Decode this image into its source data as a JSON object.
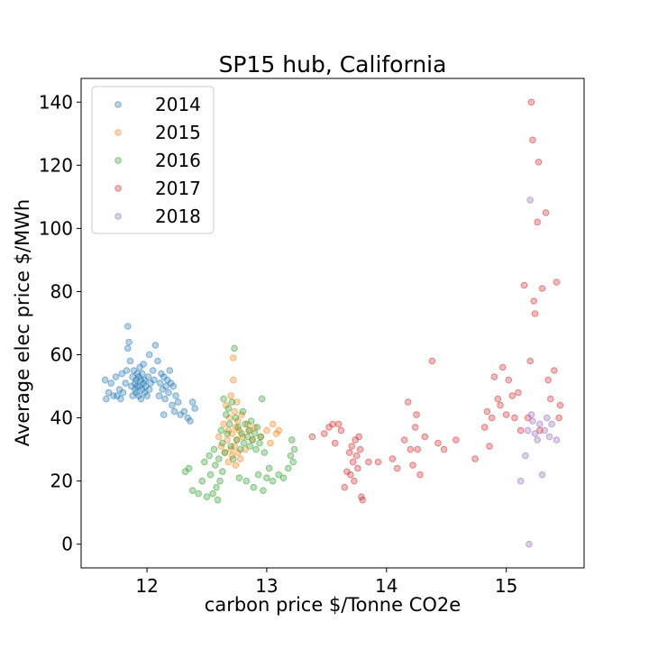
{
  "chart_data": {
    "type": "scatter",
    "title": "SP15 hub, California",
    "xlabel": "carbon price $/Tonne CO2e",
    "ylabel": "Average elec price $/MWh",
    "xlim": [
      11.45,
      15.65
    ],
    "ylim": [
      -7.5,
      147.5
    ],
    "xticks": [
      12,
      13,
      14,
      15
    ],
    "yticks": [
      0,
      20,
      40,
      60,
      80,
      100,
      120,
      140
    ],
    "grid": false,
    "legend_position": "upper-left",
    "series": [
      {
        "name": "2014",
        "color": "#1f77b4",
        "points": [
          [
            11.65,
            52
          ],
          [
            11.66,
            46
          ],
          [
            11.68,
            48
          ],
          [
            11.7,
            51
          ],
          [
            11.72,
            47
          ],
          [
            11.74,
            53
          ],
          [
            11.75,
            47
          ],
          [
            11.77,
            49
          ],
          [
            11.78,
            46
          ],
          [
            11.79,
            54
          ],
          [
            11.8,
            48
          ],
          [
            11.82,
            51
          ],
          [
            11.83,
            55
          ],
          [
            11.84,
            62
          ],
          [
            11.84,
            69
          ],
          [
            11.85,
            64
          ],
          [
            11.86,
            58
          ],
          [
            11.87,
            50
          ],
          [
            11.88,
            47
          ],
          [
            11.88,
            53
          ],
          [
            11.89,
            55
          ],
          [
            11.9,
            49
          ],
          [
            11.9,
            51
          ],
          [
            11.91,
            52
          ],
          [
            11.91,
            48
          ],
          [
            11.92,
            50
          ],
          [
            11.92,
            54
          ],
          [
            11.93,
            53
          ],
          [
            11.93,
            47
          ],
          [
            11.94,
            56
          ],
          [
            11.94,
            50
          ],
          [
            11.95,
            52
          ],
          [
            11.95,
            46
          ],
          [
            11.96,
            49
          ],
          [
            11.96,
            54
          ],
          [
            11.97,
            51
          ],
          [
            11.97,
            57
          ],
          [
            11.98,
            48
          ],
          [
            11.98,
            52
          ],
          [
            11.99,
            50
          ],
          [
            12,
            47
          ],
          [
            12.01,
            53
          ],
          [
            12.02,
            60
          ],
          [
            12.02,
            49
          ],
          [
            12.03,
            51
          ],
          [
            12.05,
            55
          ],
          [
            12.06,
            52
          ],
          [
            12.07,
            63
          ],
          [
            12.09,
            58
          ],
          [
            12.1,
            47
          ],
          [
            12.11,
            51
          ],
          [
            12.12,
            54
          ],
          [
            12.13,
            49
          ],
          [
            12.14,
            41
          ],
          [
            12.14,
            53
          ],
          [
            12.15,
            46
          ],
          [
            12.16,
            50
          ],
          [
            12.17,
            52
          ],
          [
            12.18,
            48
          ],
          [
            12.19,
            55
          ],
          [
            12.2,
            51
          ],
          [
            12.21,
            44
          ],
          [
            12.22,
            50
          ],
          [
            12.23,
            42
          ],
          [
            12.24,
            47
          ],
          [
            12.26,
            45
          ],
          [
            12.28,
            41
          ],
          [
            12.31,
            42
          ],
          [
            12.34,
            40
          ],
          [
            12.36,
            39
          ],
          [
            12.38,
            45
          ],
          [
            12.4,
            43
          ]
        ]
      },
      {
        "name": "2015",
        "color": "#ff7f0e",
        "points": [
          [
            12.6,
            34
          ],
          [
            12.62,
            31
          ],
          [
            12.64,
            38
          ],
          [
            12.65,
            29
          ],
          [
            12.66,
            44
          ],
          [
            12.67,
            33
          ],
          [
            12.68,
            36
          ],
          [
            12.68,
            26
          ],
          [
            12.69,
            40
          ],
          [
            12.7,
            30
          ],
          [
            12.7,
            47
          ],
          [
            12.71,
            35
          ],
          [
            12.71,
            28
          ],
          [
            12.72,
            52
          ],
          [
            12.72,
            59
          ],
          [
            12.73,
            42
          ],
          [
            12.73,
            31
          ],
          [
            12.74,
            37
          ],
          [
            12.74,
            25
          ],
          [
            12.75,
            33
          ],
          [
            12.75,
            45
          ],
          [
            12.76,
            29
          ],
          [
            12.76,
            39
          ],
          [
            12.77,
            36
          ],
          [
            12.78,
            27
          ],
          [
            12.79,
            41
          ],
          [
            12.8,
            34
          ],
          [
            12.82,
            30
          ],
          [
            12.84,
            38
          ],
          [
            12.86,
            36
          ],
          [
            12.88,
            33
          ],
          [
            12.9,
            37
          ],
          [
            12.95,
            34
          ],
          [
            13,
            36
          ],
          [
            13.03,
            32
          ],
          [
            13.05,
            38
          ],
          [
            13.08,
            35
          ],
          [
            13.1,
            36
          ]
        ]
      },
      {
        "name": "2016",
        "color": "#2ca02c",
        "points": [
          [
            12.32,
            23
          ],
          [
            12.35,
            24
          ],
          [
            12.38,
            17
          ],
          [
            12.43,
            16
          ],
          [
            12.46,
            20
          ],
          [
            12.48,
            26
          ],
          [
            12.5,
            15
          ],
          [
            12.52,
            28
          ],
          [
            12.53,
            22
          ],
          [
            12.55,
            16
          ],
          [
            12.56,
            30
          ],
          [
            12.57,
            25
          ],
          [
            12.58,
            18
          ],
          [
            12.59,
            14
          ],
          [
            12.6,
            27
          ],
          [
            12.61,
            20
          ],
          [
            12.62,
            36
          ],
          [
            12.63,
            23
          ],
          [
            12.63,
            32
          ],
          [
            12.64,
            46
          ],
          [
            12.65,
            29
          ],
          [
            12.66,
            41
          ],
          [
            12.67,
            35
          ],
          [
            12.68,
            43
          ],
          [
            12.69,
            38
          ],
          [
            12.7,
            31
          ],
          [
            12.71,
            45
          ],
          [
            12.72,
            27
          ],
          [
            12.73,
            62
          ],
          [
            12.74,
            40
          ],
          [
            12.75,
            33
          ],
          [
            12.76,
            37
          ],
          [
            12.77,
            21
          ],
          [
            12.78,
            30
          ],
          [
            12.79,
            35
          ],
          [
            12.8,
            42
          ],
          [
            12.81,
            32
          ],
          [
            12.82,
            38
          ],
          [
            12.83,
            20
          ],
          [
            12.84,
            34
          ],
          [
            12.85,
            36
          ],
          [
            12.86,
            31
          ],
          [
            12.87,
            39
          ],
          [
            12.88,
            33
          ],
          [
            12.89,
            18
          ],
          [
            12.9,
            35
          ],
          [
            12.91,
            30
          ],
          [
            12.92,
            37
          ],
          [
            12.93,
            22
          ],
          [
            12.94,
            32
          ],
          [
            12.95,
            34
          ],
          [
            12.96,
            46
          ],
          [
            12.97,
            17
          ],
          [
            12.98,
            29
          ],
          [
            13,
            21
          ],
          [
            13.02,
            24
          ],
          [
            13.05,
            20
          ],
          [
            13.1,
            22
          ],
          [
            13.14,
            21
          ],
          [
            13.18,
            24
          ],
          [
            13.2,
            28
          ],
          [
            13.21,
            33
          ],
          [
            13.22,
            26
          ],
          [
            13.23,
            30
          ]
        ]
      },
      {
        "name": "2017",
        "color": "#d62728",
        "points": [
          [
            13.38,
            34
          ],
          [
            13.48,
            35
          ],
          [
            13.52,
            37
          ],
          [
            13.55,
            38
          ],
          [
            13.57,
            32
          ],
          [
            13.6,
            38
          ],
          [
            13.62,
            36
          ],
          [
            13.65,
            18
          ],
          [
            13.67,
            23
          ],
          [
            13.69,
            29
          ],
          [
            13.7,
            22
          ],
          [
            13.71,
            31
          ],
          [
            13.72,
            26
          ],
          [
            13.73,
            20
          ],
          [
            13.74,
            33
          ],
          [
            13.75,
            28
          ],
          [
            13.76,
            24
          ],
          [
            13.77,
            34
          ],
          [
            13.78,
            30
          ],
          [
            13.79,
            15
          ],
          [
            13.8,
            14
          ],
          [
            13.85,
            26
          ],
          [
            13.93,
            26
          ],
          [
            14.05,
            27
          ],
          [
            14.09,
            24
          ],
          [
            14.15,
            33
          ],
          [
            14.18,
            45
          ],
          [
            14.2,
            30
          ],
          [
            14.22,
            25
          ],
          [
            14.24,
            37
          ],
          [
            14.25,
            41
          ],
          [
            14.26,
            30
          ],
          [
            14.28,
            22
          ],
          [
            14.32,
            34
          ],
          [
            14.38,
            58
          ],
          [
            14.43,
            32
          ],
          [
            14.48,
            30
          ],
          [
            14.58,
            33
          ],
          [
            14.74,
            27
          ],
          [
            14.82,
            37
          ],
          [
            14.84,
            42
          ],
          [
            14.86,
            31
          ],
          [
            14.88,
            40
          ],
          [
            14.9,
            53
          ],
          [
            14.93,
            46
          ],
          [
            14.95,
            44
          ],
          [
            14.97,
            56
          ],
          [
            15,
            41
          ],
          [
            15.02,
            52
          ],
          [
            15.05,
            47
          ],
          [
            15.07,
            40
          ],
          [
            15.1,
            48
          ],
          [
            15.12,
            36
          ],
          [
            15.15,
            82
          ],
          [
            15.18,
            40
          ],
          [
            15.2,
            58
          ],
          [
            15.21,
            140
          ],
          [
            15.22,
            128
          ],
          [
            15.23,
            77
          ],
          [
            15.24,
            73
          ],
          [
            15.26,
            102
          ],
          [
            15.27,
            121
          ],
          [
            15.28,
            36
          ],
          [
            15.3,
            81
          ],
          [
            15.33,
            105
          ],
          [
            15.35,
            52
          ],
          [
            15.37,
            46
          ],
          [
            15.4,
            55
          ],
          [
            15.42,
            83
          ],
          [
            15.44,
            40
          ],
          [
            15.45,
            44
          ]
        ]
      },
      {
        "name": "2018",
        "color": "#9467bd",
        "points": [
          [
            15.12,
            20
          ],
          [
            15.16,
            28
          ],
          [
            15.18,
            36
          ],
          [
            15.19,
            0
          ],
          [
            15.2,
            109
          ],
          [
            15.21,
            41
          ],
          [
            15.22,
            39
          ],
          [
            15.24,
            35
          ],
          [
            15.26,
            33
          ],
          [
            15.28,
            38
          ],
          [
            15.3,
            22
          ],
          [
            15.32,
            36
          ],
          [
            15.34,
            40
          ],
          [
            15.36,
            34
          ],
          [
            15.38,
            38
          ],
          [
            15.42,
            33
          ]
        ]
      }
    ]
  }
}
